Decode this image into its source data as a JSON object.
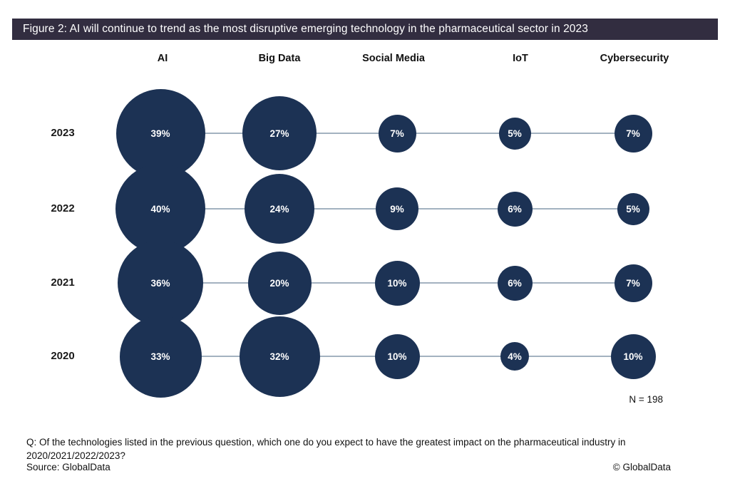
{
  "title_bar": {
    "text": "Figure 2: AI will continue to trend as the most disruptive emerging technology in the pharmaceutical sector in 2023"
  },
  "chart_data": {
    "type": "bubble",
    "title": "Figure 2: AI will continue to trend as the most disruptive emerging technology in the pharmaceutical sector in 2023",
    "columns": [
      "AI",
      "Big Data",
      "Social Media",
      "IoT",
      "Cybersecurity"
    ],
    "rows": [
      "2023",
      "2022",
      "2021",
      "2020"
    ],
    "series": [
      {
        "name": "2023",
        "values": [
          39,
          27,
          7,
          5,
          7
        ]
      },
      {
        "name": "2022",
        "values": [
          40,
          24,
          9,
          6,
          5
        ]
      },
      {
        "name": "2021",
        "values": [
          36,
          20,
          10,
          6,
          7
        ]
      },
      {
        "name": "2020",
        "values": [
          33,
          32,
          10,
          4,
          10
        ]
      }
    ],
    "unit": "%",
    "sample_label": "N = 198",
    "bubble_color": "#1c3254",
    "connector_color": "#a3b2c0",
    "size_scale": "diameter ~ 20 * sqrt(percent)"
  },
  "footer": {
    "question_line1": "Q: Of the technologies listed in the previous question, which one do you expect to have the greatest impact on the pharmaceutical industry in",
    "question_line2": "2020/2021/2022/2023?",
    "source": "Source: GlobalData",
    "copyright": "© GlobalData"
  },
  "colors": {
    "title_bar_bg": "#322d40",
    "title_text": "#ffffff",
    "bubble": "#1c3254",
    "connector": "#a3b2c0",
    "text": "#111111"
  }
}
